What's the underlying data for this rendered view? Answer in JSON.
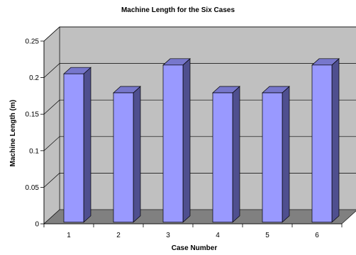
{
  "chart_data": {
    "type": "bar",
    "title": "Machine Length for the Six Cases",
    "xlabel": "Case Number",
    "ylabel": "Machine Length (m)",
    "categories": [
      "1",
      "2",
      "3",
      "4",
      "5",
      "6"
    ],
    "values": [
      0.203,
      0.177,
      0.215,
      0.177,
      0.177,
      0.215
    ],
    "ylim": [
      0,
      0.25
    ],
    "yticks": [
      "0",
      "0.05",
      "0.1",
      "0.15",
      "0.2",
      "0.25"
    ],
    "grid": true,
    "legend": "none",
    "colors": {
      "bar_front": "#9999ff",
      "bar_side": "#4f4f8f",
      "bar_top": "#7777cc",
      "back_wall": "#c0c0c0",
      "floor": "#808080"
    }
  }
}
